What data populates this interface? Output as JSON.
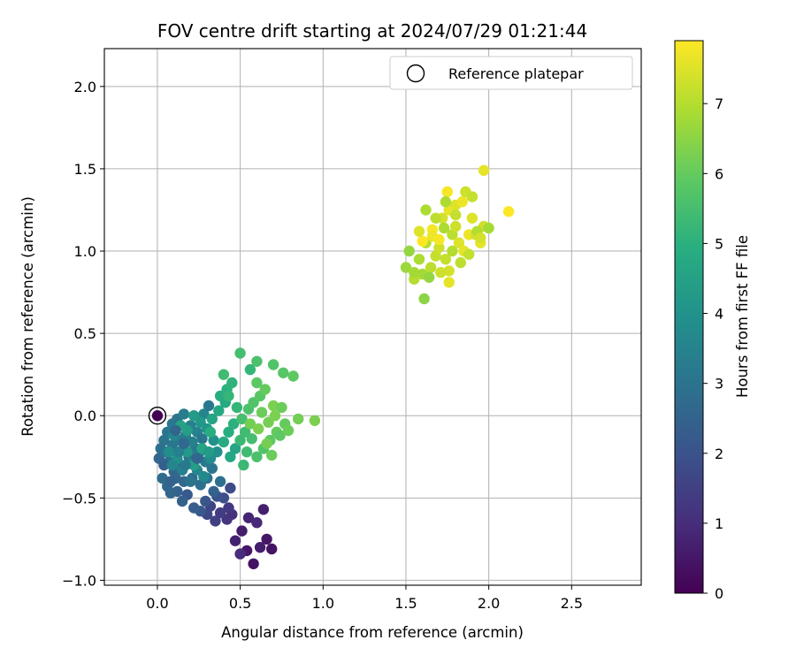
{
  "chart_data": {
    "type": "scatter",
    "title": "FOV centre drift starting at 2024/07/29 01:21:44",
    "xlabel": "Angular distance from reference (arcmin)",
    "ylabel": "Rotation from reference (arcmin)",
    "xlim": [
      -0.32,
      2.92
    ],
    "ylim": [
      -1.03,
      2.23
    ],
    "xticks": [
      "0.0",
      "0.5",
      "1.0",
      "1.5",
      "2.0",
      "2.5"
    ],
    "xtick_values": [
      0,
      0.5,
      1.0,
      1.5,
      2.0,
      2.5
    ],
    "yticks": [
      "−1.0",
      "−0.5",
      "0.0",
      "0.5",
      "1.0",
      "1.5",
      "2.0"
    ],
    "ytick_values": [
      -1.0,
      -0.5,
      0,
      0.5,
      1.0,
      1.5,
      2.0
    ],
    "grid": true,
    "legend": {
      "position": "top-right",
      "label": "Reference platepar"
    },
    "reference_point": {
      "x": 0.0,
      "y": 0.0
    },
    "colorbar": {
      "label": "Hours from first FF file",
      "colormap": "viridis",
      "range": [
        0,
        7.9
      ],
      "ticks": [
        "0",
        "1",
        "2",
        "3",
        "4",
        "5",
        "6",
        "7"
      ],
      "tick_values": [
        0,
        1,
        2,
        3,
        4,
        5,
        6,
        7
      ]
    },
    "points": [
      [
        0.0,
        0.0,
        0.0
      ],
      [
        0.51,
        -0.7,
        0.6
      ],
      [
        0.54,
        -0.82,
        0.5
      ],
      [
        0.58,
        -0.9,
        0.4
      ],
      [
        0.62,
        -0.8,
        0.6
      ],
      [
        0.66,
        -0.75,
        0.5
      ],
      [
        0.69,
        -0.81,
        0.4
      ],
      [
        0.47,
        -0.76,
        0.7
      ],
      [
        0.5,
        -0.84,
        1.0
      ],
      [
        0.45,
        -0.6,
        1.1
      ],
      [
        0.43,
        -0.56,
        1.3
      ],
      [
        0.55,
        -0.62,
        0.8
      ],
      [
        0.6,
        -0.65,
        0.9
      ],
      [
        0.64,
        -0.57,
        0.7
      ],
      [
        0.42,
        -0.63,
        1.2
      ],
      [
        0.38,
        -0.59,
        1.4
      ],
      [
        0.35,
        -0.64,
        1.5
      ],
      [
        0.32,
        -0.55,
        1.6
      ],
      [
        0.3,
        -0.6,
        1.7
      ],
      [
        0.44,
        -0.44,
        1.8
      ],
      [
        0.4,
        -0.5,
        1.9
      ],
      [
        0.36,
        -0.49,
        2.0
      ],
      [
        0.29,
        -0.52,
        2.1
      ],
      [
        0.26,
        -0.58,
        2.2
      ],
      [
        0.22,
        -0.56,
        2.3
      ],
      [
        0.18,
        -0.48,
        2.2
      ],
      [
        0.15,
        -0.52,
        2.4
      ],
      [
        0.12,
        -0.46,
        2.5
      ],
      [
        0.08,
        -0.47,
        2.6
      ],
      [
        0.06,
        -0.43,
        2.7
      ],
      [
        0.03,
        -0.38,
        2.8
      ],
      [
        0.01,
        -0.26,
        2.6
      ],
      [
        0.02,
        -0.2,
        2.9
      ],
      [
        0.04,
        -0.15,
        3.0
      ],
      [
        0.06,
        -0.1,
        3.1
      ],
      [
        0.09,
        -0.05,
        3.2
      ],
      [
        0.12,
        -0.02,
        3.0
      ],
      [
        0.16,
        0.01,
        3.3
      ],
      [
        0.2,
        -0.06,
        3.4
      ],
      [
        0.24,
        -0.1,
        3.5
      ],
      [
        0.28,
        0.01,
        3.6
      ],
      [
        0.31,
        0.06,
        3.2
      ],
      [
        0.27,
        -0.14,
        3.1
      ],
      [
        0.23,
        -0.2,
        3.0
      ],
      [
        0.19,
        -0.25,
        2.9
      ],
      [
        0.14,
        -0.3,
        2.8
      ],
      [
        0.1,
        -0.34,
        2.7
      ],
      [
        0.07,
        -0.28,
        2.9
      ],
      [
        0.05,
        -0.22,
        3.0
      ],
      [
        0.09,
        -0.18,
        3.1
      ],
      [
        0.13,
        -0.15,
        3.2
      ],
      [
        0.17,
        -0.12,
        3.3
      ],
      [
        0.21,
        -0.16,
        3.4
      ],
      [
        0.25,
        -0.23,
        3.3
      ],
      [
        0.29,
        -0.28,
        3.2
      ],
      [
        0.33,
        -0.32,
        3.1
      ],
      [
        0.3,
        -0.38,
        3.0
      ],
      [
        0.26,
        -0.42,
        2.9
      ],
      [
        0.21,
        -0.38,
        2.8
      ],
      [
        0.16,
        -0.4,
        2.7
      ],
      [
        0.11,
        -0.38,
        2.6
      ],
      [
        0.08,
        -0.4,
        2.5
      ],
      [
        0.04,
        -0.3,
        2.4
      ],
      [
        0.15,
        -0.33,
        3.4
      ],
      [
        0.2,
        -0.29,
        3.5
      ],
      [
        0.24,
        -0.33,
        3.6
      ],
      [
        0.28,
        -0.37,
        3.7
      ],
      [
        0.32,
        -0.26,
        3.8
      ],
      [
        0.36,
        -0.22,
        3.9
      ],
      [
        0.34,
        -0.15,
        4.0
      ],
      [
        0.3,
        -0.08,
        4.1
      ],
      [
        0.26,
        -0.04,
        4.2
      ],
      [
        0.22,
        0.0,
        4.3
      ],
      [
        0.18,
        -0.09,
        4.4
      ],
      [
        0.14,
        -0.06,
        4.5
      ],
      [
        0.33,
        -0.02,
        4.6
      ],
      [
        0.37,
        0.03,
        4.7
      ],
      [
        0.41,
        0.08,
        4.8
      ],
      [
        0.38,
        0.12,
        4.9
      ],
      [
        0.42,
        0.16,
        5.0
      ],
      [
        0.45,
        0.2,
        5.1
      ],
      [
        0.48,
        0.05,
        5.2
      ],
      [
        0.46,
        -0.05,
        5.0
      ],
      [
        0.43,
        -0.1,
        4.9
      ],
      [
        0.4,
        -0.16,
        4.8
      ],
      [
        0.44,
        -0.25,
        4.7
      ],
      [
        0.47,
        -0.2,
        4.6
      ],
      [
        0.5,
        -0.15,
        5.3
      ],
      [
        0.53,
        -0.1,
        5.4
      ],
      [
        0.51,
        -0.02,
        5.5
      ],
      [
        0.55,
        0.04,
        5.6
      ],
      [
        0.58,
        0.08,
        5.7
      ],
      [
        0.62,
        0.12,
        5.8
      ],
      [
        0.6,
        0.2,
        5.9
      ],
      [
        0.65,
        0.16,
        6.0
      ],
      [
        0.63,
        0.02,
        6.1
      ],
      [
        0.67,
        -0.04,
        6.2
      ],
      [
        0.7,
        0.06,
        6.3
      ],
      [
        0.72,
        -0.1,
        6.0
      ],
      [
        0.68,
        -0.15,
        5.9
      ],
      [
        0.64,
        -0.2,
        5.7
      ],
      [
        0.6,
        -0.25,
        5.6
      ],
      [
        0.57,
        -0.14,
        5.5
      ],
      [
        0.54,
        -0.22,
        5.4
      ],
      [
        0.52,
        -0.3,
        5.3
      ],
      [
        0.56,
        0.28,
        5.2
      ],
      [
        0.5,
        0.38,
        5.5
      ],
      [
        0.6,
        0.33,
        5.6
      ],
      [
        0.7,
        0.31,
        5.7
      ],
      [
        0.4,
        0.25,
        5.4
      ],
      [
        0.43,
        0.12,
        5.2
      ],
      [
        0.76,
        0.26,
        5.8
      ],
      [
        0.82,
        0.24,
        5.9
      ],
      [
        0.75,
        0.05,
        6.1
      ],
      [
        0.77,
        -0.05,
        6.0
      ],
      [
        0.74,
        -0.12,
        5.9
      ],
      [
        0.79,
        -0.09,
        6.1
      ],
      [
        0.85,
        -0.02,
        6.2
      ],
      [
        0.95,
        -0.03,
        6.3
      ],
      [
        0.66,
        -0.17,
        6.2
      ],
      [
        0.71,
        0.0,
        6.3
      ],
      [
        0.69,
        -0.24,
        6.1
      ],
      [
        0.56,
        -0.05,
        6.2
      ],
      [
        0.61,
        -0.08,
        6.3
      ],
      [
        0.38,
        -0.4,
        2.9
      ],
      [
        0.34,
        -0.46,
        2.5
      ],
      [
        0.1,
        -0.12,
        3.6
      ],
      [
        0.07,
        -0.22,
        3.8
      ],
      [
        0.12,
        -0.26,
        4.0
      ],
      [
        0.18,
        -0.22,
        4.2
      ],
      [
        0.22,
        -0.3,
        4.4
      ],
      [
        0.27,
        -0.2,
        4.6
      ],
      [
        0.32,
        -0.1,
        4.9
      ],
      [
        0.2,
        -0.4,
        3.0
      ],
      [
        0.17,
        -0.3,
        3.2
      ],
      [
        0.13,
        -0.22,
        3.4
      ],
      [
        0.09,
        -0.3,
        3.6
      ],
      [
        0.11,
        -0.09,
        2.6
      ],
      [
        0.16,
        -0.17,
        2.7
      ],
      [
        0.24,
        -0.26,
        2.6
      ],
      [
        0.31,
        -0.22,
        4.3
      ],
      [
        1.6,
        0.86,
        6.8
      ],
      [
        1.55,
        0.83,
        7.0
      ],
      [
        1.5,
        0.9,
        6.7
      ],
      [
        1.52,
        1.0,
        6.6
      ],
      [
        1.58,
        0.95,
        6.9
      ],
      [
        1.62,
        1.05,
        7.0
      ],
      [
        1.65,
        0.9,
        7.1
      ],
      [
        1.68,
        0.97,
        7.2
      ],
      [
        1.7,
        1.02,
        7.3
      ],
      [
        1.74,
        0.95,
        7.2
      ],
      [
        1.76,
        0.88,
        7.4
      ],
      [
        1.78,
        1.1,
        7.1
      ],
      [
        1.8,
        1.15,
        7.3
      ],
      [
        1.82,
        1.05,
        7.5
      ],
      [
        1.85,
        1.0,
        7.6
      ],
      [
        1.88,
        1.1,
        7.7
      ],
      [
        1.9,
        1.2,
        7.5
      ],
      [
        1.92,
        1.1,
        7.4
      ],
      [
        1.95,
        1.05,
        7.6
      ],
      [
        1.97,
        1.15,
        7.3
      ],
      [
        1.72,
        1.2,
        7.4
      ],
      [
        1.76,
        1.25,
        7.6
      ],
      [
        1.8,
        1.28,
        7.5
      ],
      [
        1.84,
        1.3,
        7.7
      ],
      [
        1.86,
        1.36,
        7.3
      ],
      [
        1.9,
        1.33,
        7.2
      ],
      [
        1.75,
        1.36,
        7.8
      ],
      [
        1.62,
        1.25,
        6.9
      ],
      [
        1.97,
        1.49,
        7.6
      ],
      [
        2.12,
        1.24,
        7.9
      ],
      [
        2.0,
        1.14,
        6.8
      ],
      [
        1.66,
        1.13,
        7.8
      ],
      [
        1.6,
        1.06,
        7.9
      ],
      [
        1.66,
        1.09,
        7.7
      ],
      [
        1.7,
        1.07,
        7.8
      ],
      [
        1.78,
        1.0,
        7.0
      ],
      [
        1.73,
        1.14,
        6.9
      ],
      [
        1.83,
        0.93,
        7.1
      ],
      [
        1.88,
        0.98,
        7.2
      ],
      [
        1.93,
        1.12,
        7.0
      ],
      [
        1.95,
        1.08,
        7.4
      ],
      [
        1.61,
        0.71,
        6.5
      ],
      [
        1.76,
        0.81,
        7.6
      ],
      [
        1.71,
        0.87,
        7.3
      ],
      [
        1.64,
        0.84,
        6.6
      ],
      [
        1.55,
        0.87,
        6.8
      ],
      [
        1.58,
        1.12,
        7.5
      ],
      [
        1.68,
        1.2,
        7.1
      ],
      [
        1.74,
        1.3,
        6.9
      ],
      [
        1.8,
        1.22,
        7.2
      ]
    ]
  }
}
